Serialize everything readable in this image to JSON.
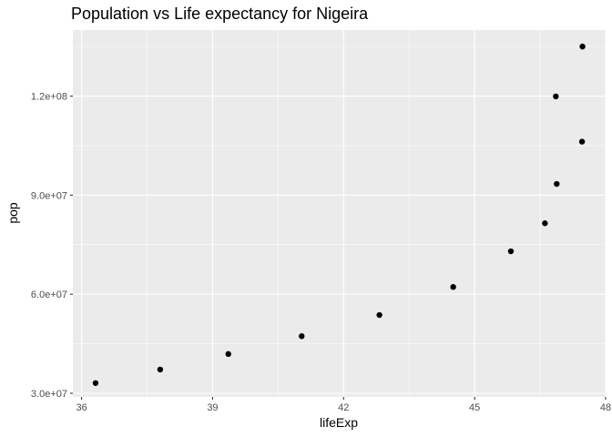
{
  "chart_data": {
    "type": "scatter",
    "title": "Population vs Life expectancy for Nigeira",
    "xlabel": "lifeExp",
    "ylabel": "pop",
    "xlim": [
      35.8,
      48.0
    ],
    "ylim": [
      28900000,
      140000000
    ],
    "x_ticks": [
      36,
      39,
      42,
      45,
      48
    ],
    "x_tick_labels": [
      "36",
      "39",
      "42",
      "45",
      "48"
    ],
    "y_ticks": [
      30000000,
      60000000,
      90000000,
      120000000
    ],
    "y_tick_labels": [
      "3.0e+07",
      "6.0e+07",
      "9.0e+07",
      "1.2e+08"
    ],
    "grid": true,
    "panel_background": "#ebebeb",
    "grid_color": "#ffffff",
    "point_color": "#000000",
    "series": [
      {
        "x": [
          36.32,
          37.8,
          39.36,
          41.04,
          42.82,
          44.51,
          45.83,
          46.61,
          46.88,
          47.46,
          46.86,
          47.47
        ],
        "y": [
          33100000,
          37200000,
          41900000,
          47300000,
          53700000,
          62200000,
          73000000,
          81500000,
          93400000,
          106200000,
          119900000,
          135000000
        ]
      }
    ]
  }
}
